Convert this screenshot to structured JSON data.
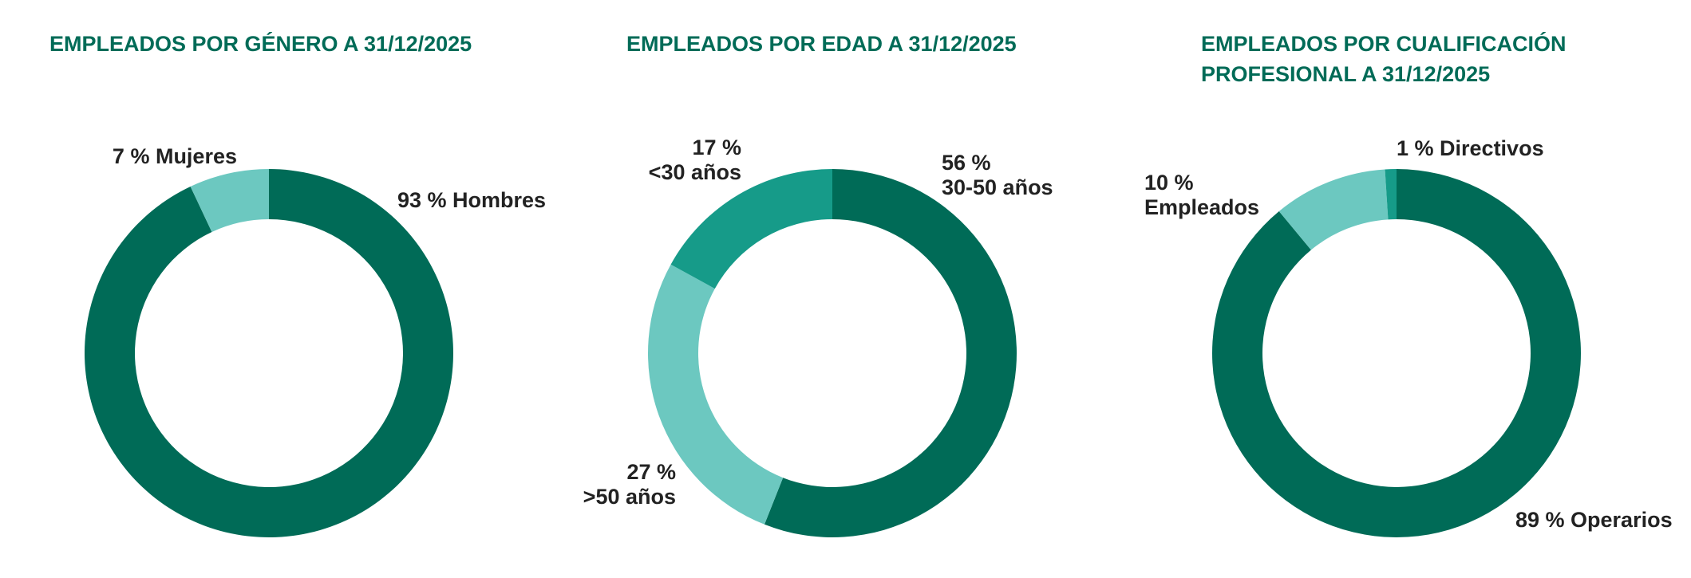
{
  "colors": {
    "title": "#006b57",
    "dark_green": "#006b57",
    "teal": "#169b89",
    "light_teal": "#6cc8c0",
    "label": "#222222"
  },
  "chart_data": [
    {
      "type": "pie",
      "variant": "donut",
      "title": "EMPLEADOS POR GÉNERO A 31/12/2025",
      "slices": [
        {
          "label": "93 % Hombres",
          "value": 93,
          "color": "#006b57"
        },
        {
          "label": "7 % Mujeres",
          "value": 7,
          "color": "#6cc8c0"
        }
      ]
    },
    {
      "type": "pie",
      "variant": "donut",
      "title": "EMPLEADOS POR EDAD A 31/12/2025",
      "slices": [
        {
          "label": "56 %\n30-50 años",
          "value": 56,
          "color": "#006b57"
        },
        {
          "label": "27 %\n>50 años",
          "value": 27,
          "color": "#6cc8c0"
        },
        {
          "label": "17 %\n<30 años",
          "value": 17,
          "color": "#169b89"
        }
      ]
    },
    {
      "type": "pie",
      "variant": "donut",
      "title": "EMPLEADOS POR CUALIFICACIÓN\nPROFESIONAL A 31/12/2025",
      "slices": [
        {
          "label": "89 % Operarios",
          "value": 89,
          "color": "#006b57"
        },
        {
          "label": "10 %\nEmpleados",
          "value": 10,
          "color": "#6cc8c0"
        },
        {
          "label": "1 % Directivos",
          "value": 1,
          "color": "#169b89"
        }
      ]
    }
  ]
}
